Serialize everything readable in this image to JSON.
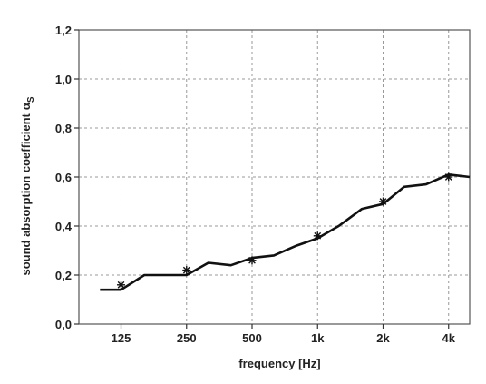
{
  "chart_data": {
    "type": "line",
    "xlabel": "frequency [Hz]",
    "ylabel": "sound absorption coefficient",
    "ylabel_symbol": "α",
    "ylabel_subscript": "S",
    "x_scale": "log",
    "xlim": [
      80,
      5000
    ],
    "ylim": [
      0,
      1.2
    ],
    "x_ticks": [
      {
        "value": 125,
        "label": "125"
      },
      {
        "value": 250,
        "label": "250"
      },
      {
        "value": 500,
        "label": "500"
      },
      {
        "value": 1000,
        "label": "1k"
      },
      {
        "value": 2000,
        "label": "2k"
      },
      {
        "value": 4000,
        "label": "4k"
      }
    ],
    "y_ticks": [
      {
        "value": 0.0,
        "label": "0,0"
      },
      {
        "value": 0.2,
        "label": "0,2"
      },
      {
        "value": 0.4,
        "label": "0,4"
      },
      {
        "value": 0.6,
        "label": "0,6"
      },
      {
        "value": 0.8,
        "label": "0,8"
      },
      {
        "value": 1.0,
        "label": "1,0"
      },
      {
        "value": 1.2,
        "label": "1,2"
      }
    ],
    "grid": true,
    "series": [
      {
        "style": "line",
        "color": "#111111",
        "x": [
          100,
          125,
          160,
          200,
          250,
          315,
          400,
          500,
          630,
          800,
          1000,
          1250,
          1600,
          2000,
          2500,
          3150,
          4000,
          5000
        ],
        "y": [
          0.14,
          0.14,
          0.2,
          0.2,
          0.2,
          0.25,
          0.24,
          0.27,
          0.28,
          0.32,
          0.35,
          0.4,
          0.47,
          0.49,
          0.56,
          0.57,
          0.61,
          0.6
        ]
      },
      {
        "style": "markers",
        "marker": "asterisk",
        "color": "#111111",
        "x": [
          125,
          250,
          500,
          1000,
          2000,
          4000
        ],
        "y": [
          0.16,
          0.22,
          0.26,
          0.36,
          0.5,
          0.6
        ]
      }
    ]
  }
}
